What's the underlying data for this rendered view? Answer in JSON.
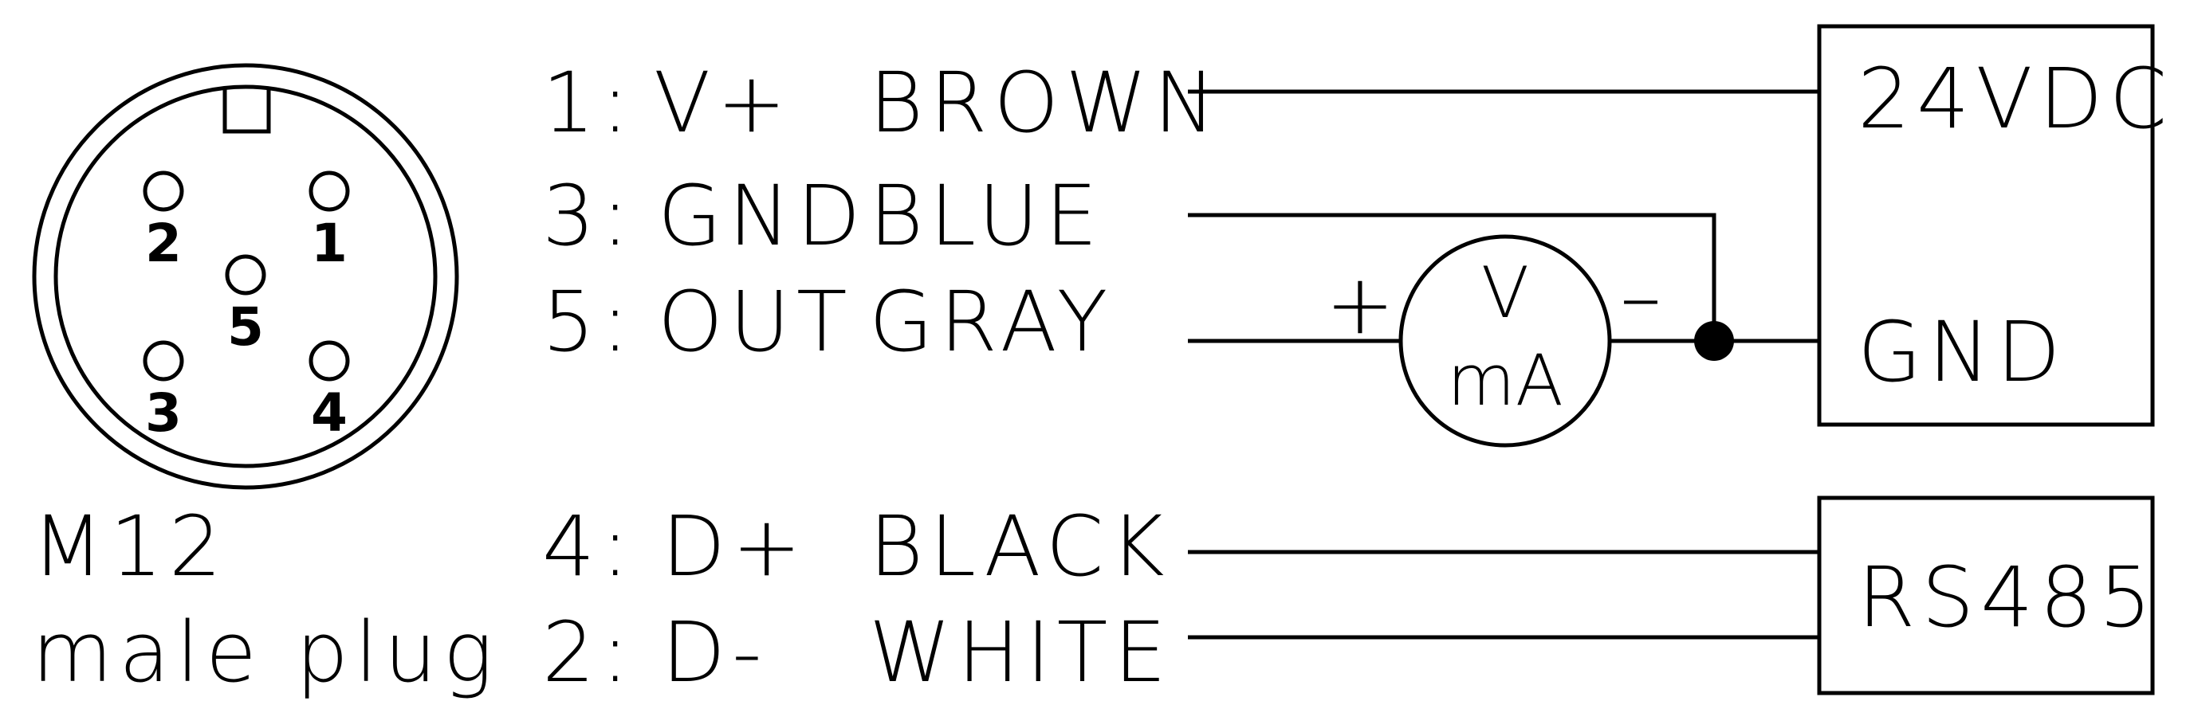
{
  "connector": {
    "title": "M12",
    "subtitle": "male plug",
    "pins": [
      "2",
      "1",
      "5",
      "3",
      "4"
    ]
  },
  "wires": [
    {
      "pin": "1:",
      "signal": "V+",
      "color": "BROWN"
    },
    {
      "pin": "3:",
      "signal": "GND",
      "color": "BLUE"
    },
    {
      "pin": "5:",
      "signal": "OUT",
      "color": "GRAY"
    },
    {
      "pin": "4:",
      "signal": "D+",
      "color": "BLACK"
    },
    {
      "pin": "2:",
      "signal": "D-",
      "color": "WHITE"
    }
  ],
  "meter": {
    "top": "V",
    "bottom": "mA",
    "plus": "+",
    "minus": "–"
  },
  "power_supply": {
    "top_label": "24VDC",
    "bottom_label": "GND"
  },
  "bus": {
    "label": "RS485"
  }
}
